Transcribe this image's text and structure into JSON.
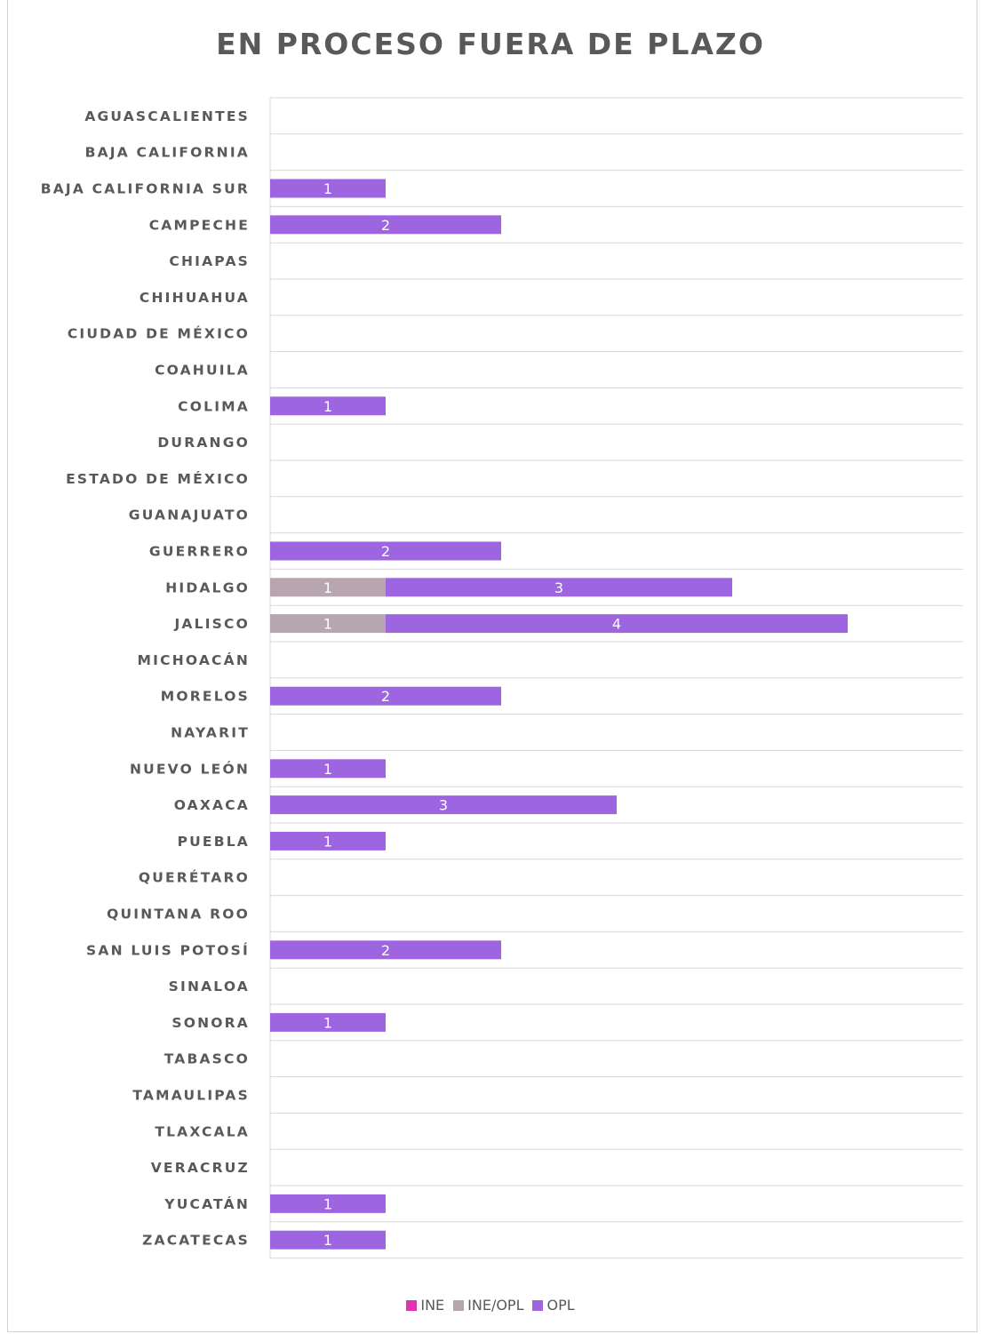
{
  "chart_data": {
    "type": "bar",
    "orientation": "horizontal",
    "stacked": true,
    "title": "EN PROCESO FUERA DE PLAZO",
    "xlabel": "",
    "ylabel": "",
    "xlim": [
      0,
      6
    ],
    "grid": true,
    "legend_position": "bottom",
    "categories": [
      "AGUASCALIENTES",
      "BAJA CALIFORNIA",
      "BAJA CALIFORNIA SUR",
      "CAMPECHE",
      "CHIAPAS",
      "CHIHUAHUA",
      "CIUDAD DE MÉXICO",
      "COAHUILA",
      "COLIMA",
      "DURANGO",
      "ESTADO DE MÉXICO",
      "GUANAJUATO",
      "GUERRERO",
      "HIDALGO",
      "JALISCO",
      "MICHOACÁN",
      "MORELOS",
      "NAYARIT",
      "NUEVO LEÓN",
      "OAXACA",
      "PUEBLA",
      "QUERÉTARO",
      "QUINTANA ROO",
      "SAN LUIS POTOSÍ",
      "SINALOA",
      "SONORA",
      "TABASCO",
      "TAMAULIPAS",
      "TLAXCALA",
      "VERACRUZ",
      "YUCATÁN",
      "ZACATECAS"
    ],
    "series": [
      {
        "name": "INE",
        "color": "#e033b3",
        "values": [
          0,
          0,
          0,
          0,
          0,
          0,
          0,
          0,
          0,
          0,
          0,
          0,
          0,
          0,
          0,
          0,
          0,
          0,
          0,
          0,
          0,
          0,
          0,
          0,
          0,
          0,
          0,
          0,
          0,
          0,
          0,
          0
        ]
      },
      {
        "name": "INE/OPL",
        "color": "#b7a5b0",
        "values": [
          0,
          0,
          0,
          0,
          0,
          0,
          0,
          0,
          0,
          0,
          0,
          0,
          0,
          1,
          1,
          0,
          0,
          0,
          0,
          0,
          0,
          0,
          0,
          0,
          0,
          0,
          0,
          0,
          0,
          0,
          0,
          0
        ]
      },
      {
        "name": "OPL",
        "color": "#9d66e0",
        "values": [
          0,
          0,
          1,
          2,
          0,
          0,
          0,
          0,
          1,
          0,
          0,
          0,
          2,
          3,
          4,
          0,
          2,
          0,
          1,
          3,
          1,
          0,
          0,
          2,
          0,
          1,
          0,
          0,
          0,
          0,
          1,
          1
        ]
      }
    ]
  }
}
